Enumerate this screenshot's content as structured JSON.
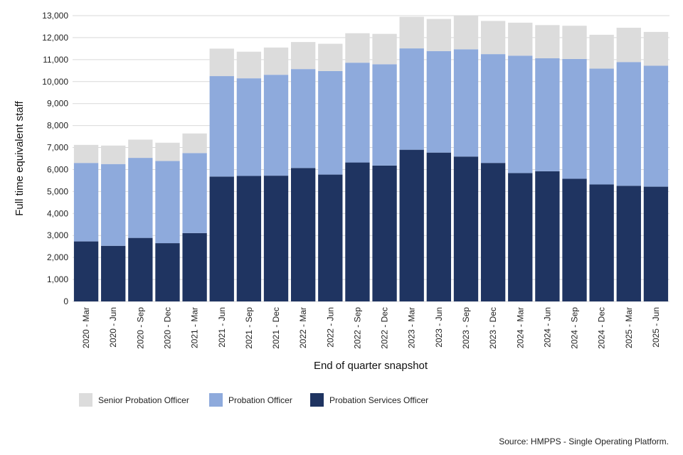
{
  "chart_data": {
    "type": "bar",
    "stacked": true,
    "title": "",
    "xlabel": "End of quarter snapshot",
    "ylabel": "Full time equivalent staff",
    "ylim": [
      0,
      13000
    ],
    "yticks": [
      0,
      1000,
      2000,
      3000,
      4000,
      5000,
      6000,
      7000,
      8000,
      9000,
      10000,
      11000,
      12000,
      13000
    ],
    "grid": true,
    "legend_position": "bottom-left",
    "categories": [
      "2020 - Mar",
      "2020 - Jun",
      "2020 - Sep",
      "2020 - Dec",
      "2021 - Mar",
      "2021 - Jun",
      "2021 - Sep",
      "2021 - Dec",
      "2022 - Mar",
      "2022 - Jun",
      "2022 - Sep",
      "2022 - Dec",
      "2023 - Mar",
      "2023 - Jun",
      "2023 - Sep",
      "2023 - Dec",
      "2024 - Mar",
      "2024 - Jun",
      "2024 - Sep",
      "2024 - Dec",
      "2025 - Mar",
      "2025 - Jun"
    ],
    "series": [
      {
        "name": "Probation Services Officer",
        "color": "#1f3461",
        "values": [
          2730,
          2530,
          2890,
          2650,
          3110,
          5680,
          5710,
          5720,
          6070,
          5770,
          6320,
          6180,
          6900,
          6770,
          6590,
          6300,
          5840,
          5920,
          5580,
          5320,
          5260,
          5220
        ]
      },
      {
        "name": "Probation Officer",
        "color": "#8eaadc",
        "values": [
          3570,
          3720,
          3640,
          3740,
          3640,
          4570,
          4440,
          4590,
          4500,
          4710,
          4540,
          4610,
          4610,
          4620,
          4880,
          4950,
          5340,
          5140,
          5450,
          5270,
          5630,
          5500
        ]
      },
      {
        "name": "Senior Probation Officer",
        "color": "#dcdcdc",
        "values": [
          820,
          840,
          830,
          830,
          890,
          1250,
          1210,
          1240,
          1230,
          1240,
          1340,
          1380,
          1440,
          1460,
          1530,
          1510,
          1500,
          1510,
          1510,
          1540,
          1560,
          1540
        ]
      }
    ],
    "legend_order": [
      "Senior Probation Officer",
      "Probation Officer",
      "Probation Services Officer"
    ],
    "source": "Source: HMPPS - Single Operating Platform."
  }
}
